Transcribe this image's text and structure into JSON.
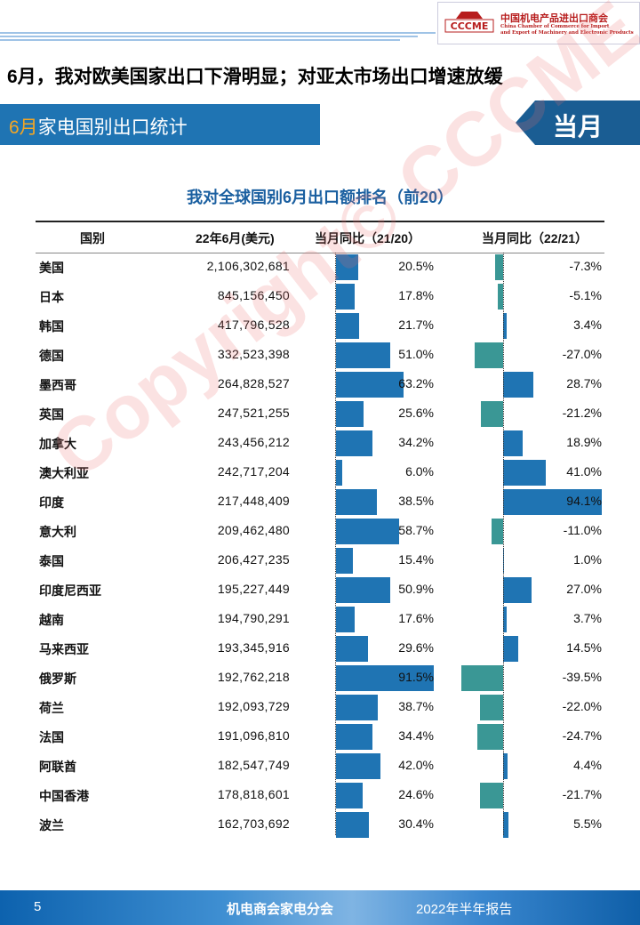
{
  "logo": {
    "mark_text": "CCCME",
    "name_cn": "中国机电产品进出口商会",
    "name_en_1": "China Chamber of Commerce for Import",
    "name_en_2": "and Export of Machinery and Electronic Products"
  },
  "headline": "6月，我对欧美国家出口下滑明显；对亚太市场出口增速放缓",
  "section": {
    "highlight": "6月",
    "title": "家电国别出口统计",
    "period_tag": "当月"
  },
  "table": {
    "title": "我对全球国别6月出口额排名（前20）",
    "headers": [
      "国别",
      "22年6月(美元)",
      "当月同比（21/20）",
      "当月同比（22/21）"
    ],
    "rows": [
      {
        "country": "美国",
        "value": "2,106,302,681",
        "yoy_2120": "20.5%",
        "yoy_2221": "-7.3%"
      },
      {
        "country": "日本",
        "value": "845,156,450",
        "yoy_2120": "17.8%",
        "yoy_2221": "-5.1%"
      },
      {
        "country": "韩国",
        "value": "417,796,528",
        "yoy_2120": "21.7%",
        "yoy_2221": "3.4%"
      },
      {
        "country": "德国",
        "value": "332,523,398",
        "yoy_2120": "51.0%",
        "yoy_2221": "-27.0%"
      },
      {
        "country": "墨西哥",
        "value": "264,828,527",
        "yoy_2120": "63.2%",
        "yoy_2221": "28.7%"
      },
      {
        "country": "英国",
        "value": "247,521,255",
        "yoy_2120": "25.6%",
        "yoy_2221": "-21.2%"
      },
      {
        "country": "加拿大",
        "value": "243,456,212",
        "yoy_2120": "34.2%",
        "yoy_2221": "18.9%"
      },
      {
        "country": "澳大利亚",
        "value": "242,717,204",
        "yoy_2120": "6.0%",
        "yoy_2221": "41.0%"
      },
      {
        "country": "印度",
        "value": "217,448,409",
        "yoy_2120": "38.5%",
        "yoy_2221": "94.1%"
      },
      {
        "country": "意大利",
        "value": "209,462,480",
        "yoy_2120": "58.7%",
        "yoy_2221": "-11.0%"
      },
      {
        "country": "泰国",
        "value": "206,427,235",
        "yoy_2120": "15.4%",
        "yoy_2221": "1.0%"
      },
      {
        "country": "印度尼西亚",
        "value": "195,227,449",
        "yoy_2120": "50.9%",
        "yoy_2221": "27.0%"
      },
      {
        "country": "越南",
        "value": "194,790,291",
        "yoy_2120": "17.6%",
        "yoy_2221": "3.7%"
      },
      {
        "country": "马来西亚",
        "value": "193,345,916",
        "yoy_2120": "29.6%",
        "yoy_2221": "14.5%"
      },
      {
        "country": "俄罗斯",
        "value": "192,762,218",
        "yoy_2120": "91.5%",
        "yoy_2221": "-39.5%"
      },
      {
        "country": "荷兰",
        "value": "192,093,729",
        "yoy_2120": "38.7%",
        "yoy_2221": "-22.0%"
      },
      {
        "country": "法国",
        "value": "191,096,810",
        "yoy_2120": "34.4%",
        "yoy_2221": "-24.7%"
      },
      {
        "country": "阿联酋",
        "value": "182,547,749",
        "yoy_2120": "42.0%",
        "yoy_2221": "4.4%"
      },
      {
        "country": "中国香港",
        "value": "178,818,601",
        "yoy_2120": "24.6%",
        "yoy_2221": "-21.7%"
      },
      {
        "country": "波兰",
        "value": "162,703,692",
        "yoy_2120": "30.4%",
        "yoy_2221": "5.5%"
      }
    ]
  },
  "colors": {
    "positive_bar": "#1f74b3",
    "negative_bar": "#3a9795",
    "title_blue": "#1a5fa0"
  },
  "watermark": "Copyright© CCCME",
  "footer": {
    "page_number": "5",
    "org": "机电商会家电分会",
    "report": "2022年半年报告"
  }
}
